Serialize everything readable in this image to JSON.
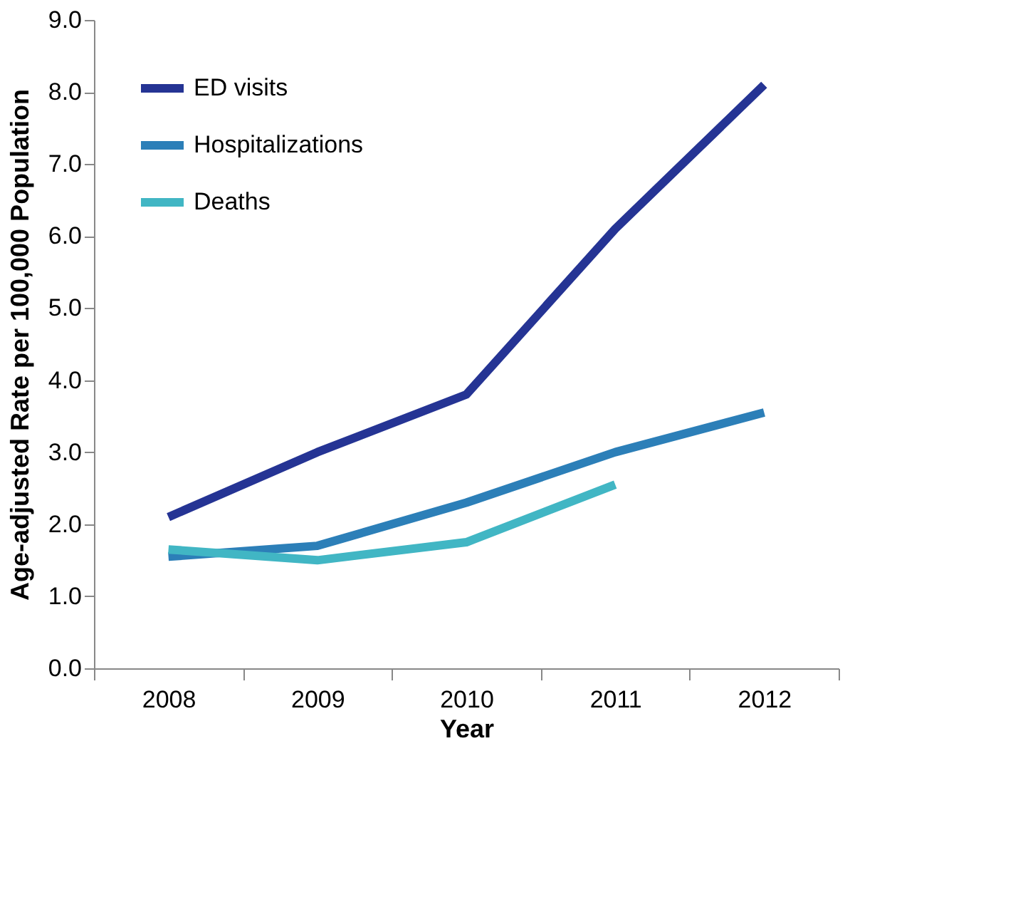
{
  "chart_data": {
    "type": "line",
    "xlabel": "Year",
    "ylabel": "Age-adjusted Rate per 100,000 Population",
    "categories": [
      "2008",
      "2009",
      "2010",
      "2011",
      "2012"
    ],
    "series": [
      {
        "name": "ED visits",
        "color": "#253494",
        "values": [
          2.1,
          3.0,
          3.8,
          6.1,
          8.1
        ]
      },
      {
        "name": "Hospitalizations",
        "color": "#2c7fb8",
        "values": [
          1.55,
          1.7,
          2.3,
          3.0,
          3.55
        ]
      },
      {
        "name": "Deaths",
        "color": "#41b6c4",
        "values": [
          1.65,
          1.5,
          1.75,
          2.55,
          null
        ]
      }
    ],
    "ylim": [
      0,
      9
    ],
    "yticks": [
      {
        "value": 0,
        "label": "0.0"
      },
      {
        "value": 1,
        "label": "1.0"
      },
      {
        "value": 2,
        "label": "2.0"
      },
      {
        "value": 3,
        "label": "3.0"
      },
      {
        "value": 4,
        "label": "4.0"
      },
      {
        "value": 5,
        "label": "5.0"
      },
      {
        "value": 6,
        "label": "6.0"
      },
      {
        "value": 7,
        "label": "7.0"
      },
      {
        "value": 8,
        "label": "8.0"
      },
      {
        "value": 9,
        "label": "9.0"
      }
    ],
    "grid": false,
    "legend": "top left",
    "marker": "none",
    "line_style": "solid"
  }
}
